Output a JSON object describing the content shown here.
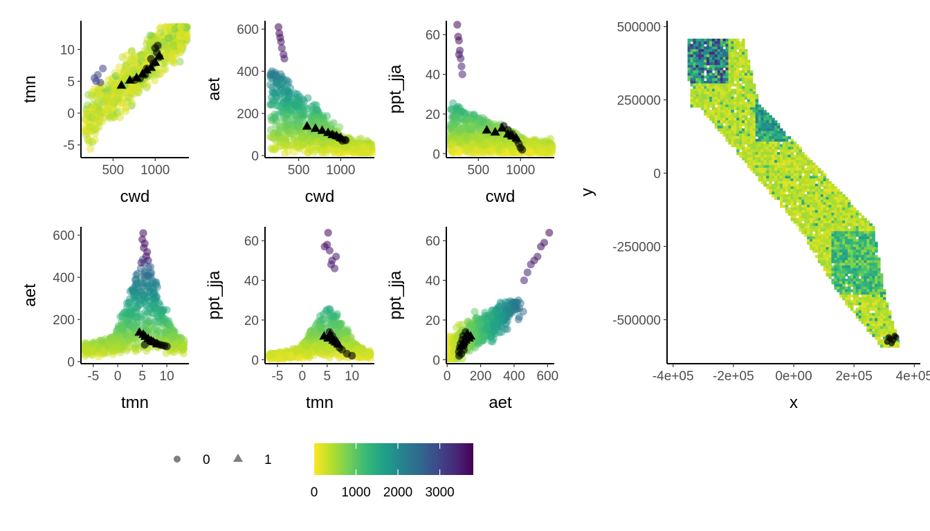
{
  "chart_data": [
    {
      "type": "scatter",
      "id": "p1",
      "xlabel": "cwd",
      "ylabel": "tmn",
      "xlim": [
        120,
        1400
      ],
      "ylim": [
        -7,
        14.5
      ],
      "xticks": [
        500,
        1000
      ],
      "xtick_labels": [
        "500",
        "1000"
      ],
      "yticks": [
        -5,
        0,
        5,
        10
      ],
      "ytick_labels": [
        "-5",
        "0",
        "5",
        "10"
      ],
      "trend": {
        "slope": 0.0125,
        "intercept": -3.5,
        "spread": 2.6
      },
      "presence_points": [
        [
          600,
          4.4
        ],
        [
          700,
          5.2
        ],
        [
          780,
          5.6
        ],
        [
          850,
          6.2
        ],
        [
          900,
          6.8
        ],
        [
          950,
          7.2
        ],
        [
          1000,
          8.0
        ],
        [
          1050,
          9.0
        ]
      ],
      "black_points": [
        [
          1000,
          10.2
        ],
        [
          1020,
          9.5
        ],
        [
          1050,
          8.8
        ],
        [
          950,
          8.5
        ],
        [
          980,
          7.8
        ],
        [
          900,
          7.0
        ],
        [
          880,
          6.0
        ],
        [
          820,
          5.4
        ],
        [
          760,
          5.2
        ],
        [
          1030,
          10.6
        ]
      ],
      "purple_points": [
        [
          300,
          5.0
        ],
        [
          320,
          6.0
        ],
        [
          380,
          7.0
        ],
        [
          280,
          5.5
        ],
        [
          350,
          4.8
        ]
      ]
    },
    {
      "type": "scatter",
      "id": "p2",
      "xlabel": "cwd",
      "ylabel": "aet",
      "xlim": [
        100,
        1400
      ],
      "ylim": [
        -10,
        640
      ],
      "xticks": [
        500,
        1000
      ],
      "xtick_labels": [
        "500",
        "1000"
      ],
      "yticks": [
        0,
        200,
        400,
        600
      ],
      "ytick_labels": [
        "0",
        "200",
        "400",
        "600"
      ],
      "presence_points": [
        [
          600,
          140
        ],
        [
          700,
          130
        ],
        [
          780,
          120
        ],
        [
          850,
          110
        ],
        [
          900,
          100
        ],
        [
          950,
          95
        ],
        [
          1000,
          85
        ]
      ],
      "black_points": [
        [
          950,
          90
        ],
        [
          1000,
          80
        ],
        [
          1050,
          75
        ],
        [
          1020,
          70
        ],
        [
          980,
          85
        ],
        [
          900,
          100
        ],
        [
          1060,
          72
        ]
      ],
      "purple_points": [
        [
          260,
          610
        ],
        [
          270,
          580
        ],
        [
          280,
          560
        ],
        [
          290,
          540
        ],
        [
          300,
          510
        ],
        [
          320,
          480
        ],
        [
          330,
          460
        ]
      ]
    },
    {
      "type": "scatter",
      "id": "p3",
      "xlabel": "cwd",
      "ylabel": "ppt_jja",
      "xlim": [
        120,
        1400
      ],
      "ylim": [
        -2,
        67
      ],
      "xticks": [
        500,
        1000
      ],
      "xtick_labels": [
        "500",
        "1000"
      ],
      "yticks": [
        0,
        20,
        40,
        60
      ],
      "ytick_labels": [
        "0",
        "20",
        "40",
        "60"
      ],
      "presence_points": [
        [
          600,
          12
        ],
        [
          700,
          11
        ],
        [
          780,
          13
        ],
        [
          850,
          10
        ],
        [
          900,
          9
        ],
        [
          950,
          8
        ]
      ],
      "black_points": [
        [
          800,
          14
        ],
        [
          850,
          12
        ],
        [
          900,
          10
        ],
        [
          950,
          7
        ],
        [
          980,
          5
        ],
        [
          1000,
          3
        ],
        [
          1020,
          2
        ],
        [
          880,
          9
        ]
      ],
      "purple_points": [
        [
          250,
          65
        ],
        [
          260,
          59
        ],
        [
          270,
          57
        ],
        [
          280,
          52
        ],
        [
          270,
          50
        ],
        [
          290,
          48
        ],
        [
          300,
          44
        ],
        [
          310,
          40
        ]
      ]
    },
    {
      "type": "scatter",
      "id": "p4",
      "xlabel": "tmn",
      "ylabel": "aet",
      "xlim": [
        -7.5,
        14.5
      ],
      "ylim": [
        -10,
        640
      ],
      "xticks": [
        -5,
        0,
        5,
        10
      ],
      "xtick_labels": [
        "-5",
        "0",
        "5",
        "10"
      ],
      "yticks": [
        0,
        200,
        400,
        600
      ],
      "ytick_labels": [
        "0",
        "200",
        "400",
        "600"
      ],
      "presence_points": [
        [
          4.4,
          140
        ],
        [
          5.2,
          130
        ],
        [
          5.6,
          120
        ],
        [
          6.2,
          110
        ],
        [
          6.8,
          100
        ],
        [
          7.2,
          95
        ],
        [
          8.0,
          85
        ]
      ],
      "black_points": [
        [
          6.5,
          100
        ],
        [
          7.0,
          95
        ],
        [
          7.5,
          90
        ],
        [
          8.0,
          85
        ],
        [
          8.5,
          80
        ],
        [
          9.0,
          78
        ],
        [
          9.5,
          75
        ],
        [
          10.0,
          72
        ],
        [
          5.5,
          80
        ]
      ],
      "purple_points": [
        [
          5.2,
          610
        ],
        [
          5.0,
          580
        ],
        [
          5.5,
          560
        ],
        [
          5.3,
          540
        ],
        [
          6.0,
          520
        ],
        [
          5.8,
          500
        ],
        [
          6.2,
          480
        ],
        [
          4.8,
          470
        ]
      ]
    },
    {
      "type": "scatter",
      "id": "p5",
      "xlabel": "tmn",
      "ylabel": "ppt_jja",
      "xlim": [
        -7.5,
        14.5
      ],
      "ylim": [
        -2,
        67
      ],
      "xticks": [
        -5,
        0,
        5,
        10
      ],
      "xtick_labels": [
        "-5",
        "0",
        "5",
        "10"
      ],
      "yticks": [
        0,
        20,
        40,
        60
      ],
      "ytick_labels": [
        "0",
        "20",
        "40",
        "60"
      ],
      "presence_points": [
        [
          4.4,
          12
        ],
        [
          5.2,
          11
        ],
        [
          5.6,
          13
        ],
        [
          6.2,
          10
        ],
        [
          6.8,
          9
        ],
        [
          7.2,
          8
        ]
      ],
      "black_points": [
        [
          5.5,
          14
        ],
        [
          6.0,
          12
        ],
        [
          6.5,
          10
        ],
        [
          7.0,
          8
        ],
        [
          7.5,
          6
        ],
        [
          8.0,
          5
        ],
        [
          9.0,
          3
        ],
        [
          10.0,
          2
        ],
        [
          6.2,
          9
        ]
      ],
      "purple_points": [
        [
          5.2,
          64
        ],
        [
          4.5,
          57
        ],
        [
          5.0,
          58
        ],
        [
          5.5,
          55
        ],
        [
          6.0,
          50
        ],
        [
          5.8,
          48
        ],
        [
          6.5,
          46
        ],
        [
          6.8,
          52
        ]
      ]
    },
    {
      "type": "scatter",
      "id": "p6",
      "xlabel": "aet",
      "ylabel": "ppt_jja",
      "xlim": [
        -5,
        640
      ],
      "ylim": [
        -2,
        67
      ],
      "xticks": [
        0,
        200,
        400,
        600
      ],
      "xtick_labels": [
        "0",
        "200",
        "400",
        "600"
      ],
      "yticks": [
        0,
        20,
        40,
        60
      ],
      "ytick_labels": [
        "0",
        "20",
        "40",
        "60"
      ],
      "presence_points": [
        [
          140,
          12
        ],
        [
          130,
          11
        ],
        [
          120,
          13
        ],
        [
          110,
          10
        ],
        [
          100,
          9
        ],
        [
          95,
          8
        ],
        [
          85,
          7
        ]
      ],
      "black_points": [
        [
          90,
          10
        ],
        [
          80,
          8
        ],
        [
          75,
          6
        ],
        [
          70,
          4
        ],
        [
          85,
          3
        ],
        [
          100,
          5
        ],
        [
          95,
          12
        ],
        [
          110,
          14
        ],
        [
          72,
          2
        ]
      ],
      "purple_points": [
        [
          610,
          64
        ],
        [
          580,
          59
        ],
        [
          560,
          57
        ],
        [
          540,
          52
        ],
        [
          520,
          50
        ],
        [
          500,
          48
        ],
        [
          480,
          44
        ],
        [
          460,
          40
        ]
      ]
    },
    {
      "type": "heatmap",
      "id": "map",
      "xlabel": "x",
      "ylabel": "y",
      "xlim": [
        -420000,
        420000
      ],
      "ylim": [
        -650000,
        520000
      ],
      "xticks": [
        -400000,
        -200000,
        0,
        200000,
        400000
      ],
      "xtick_labels": [
        "-4e+05",
        "-2e+05",
        "0e+00",
        "2e+05",
        "4e+05"
      ],
      "yticks": [
        -500000,
        -250000,
        0,
        250000,
        500000
      ],
      "ytick_labels": [
        "-500000",
        "-250000",
        "0",
        "250000",
        "500000"
      ],
      "presence_points": [
        [
          320000,
          -565000
        ],
        [
          330000,
          -570000
        ],
        [
          340000,
          -560000
        ],
        [
          310000,
          -575000
        ],
        [
          325000,
          -580000
        ],
        [
          335000,
          -555000
        ],
        [
          315000,
          -560000
        ]
      ]
    }
  ],
  "legend": {
    "shape_entries": [
      {
        "shape": "circle",
        "label": "0"
      },
      {
        "shape": "triangle",
        "label": "1"
      }
    ],
    "colorbar": {
      "palette": "viridis-reversed",
      "min": 0,
      "max": 3800,
      "ticks": [
        0,
        1000,
        2000,
        3000
      ],
      "tick_labels": [
        "0",
        "1000",
        "2000",
        "3000"
      ],
      "colors": [
        "#fde725",
        "#b5de2b",
        "#6ece58",
        "#35b779",
        "#1f9e89",
        "#26828e",
        "#31688e",
        "#3e4989",
        "#482878",
        "#440154"
      ]
    }
  }
}
